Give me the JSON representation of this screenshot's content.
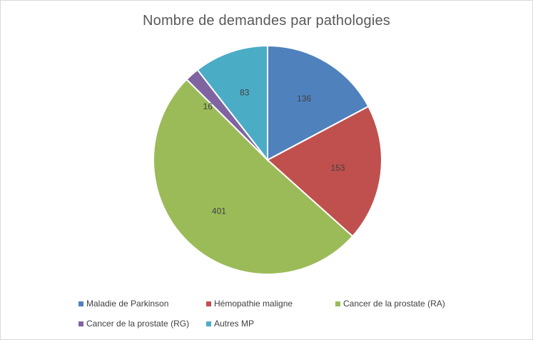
{
  "chart_data": {
    "type": "pie",
    "title": "Nombre de demandes par pathologies",
    "categories": [
      "Maladie de Parkinson",
      "Hémopathie maligne",
      "Cancer de la prostate (RA)",
      "Cancer de la prostate (RG)",
      "Autres MP"
    ],
    "values": [
      136,
      153,
      401,
      16,
      83
    ],
    "data_labels": [
      "136",
      "153",
      "401",
      "16",
      "83"
    ],
    "colors": [
      "#4f81bd",
      "#c0504d",
      "#9bbb59",
      "#8064a2",
      "#4bacc6"
    ],
    "legend_position": "bottom",
    "start_angle_deg": 0,
    "direction": "clockwise"
  }
}
